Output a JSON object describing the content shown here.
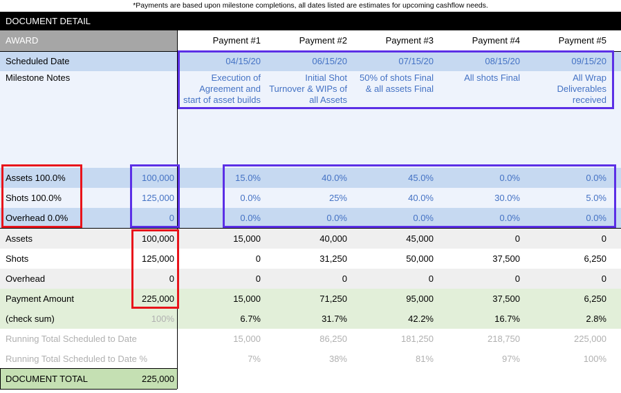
{
  "note": "*Payments are based upon milestone completions, all dates listed are estimates for upcoming cashflow needs.",
  "title": "DOCUMENT DETAIL",
  "award_label": "AWARD",
  "payment_headers": [
    "Payment #1",
    "Payment #2",
    "Payment #3",
    "Payment #4",
    "Payment #5"
  ],
  "scheduled_date": {
    "label": "Scheduled Date",
    "values": [
      "04/15/20",
      "06/15/20",
      "07/15/20",
      "08/15/20",
      "09/15/20"
    ]
  },
  "milestone_notes": {
    "label": "Milestone Notes",
    "values": [
      [
        "Execution of",
        "Agreement and",
        "start of asset builds"
      ],
      [
        "Initial Shot",
        "Turnover & WIPs of",
        "all Assets"
      ],
      [
        "50% of shots Final",
        "& all assets Final"
      ],
      [
        "All shots Final"
      ],
      [
        "All Wrap",
        "Deliverables",
        "received"
      ]
    ]
  },
  "percent_rows": [
    {
      "label": "Assets 100.0%",
      "amount": "100,000",
      "values": [
        "15.0%",
        "40.0%",
        "45.0%",
        "0.0%",
        "0.0%"
      ]
    },
    {
      "label": "Shots 100.0%",
      "amount": "125,000",
      "values": [
        "0.0%",
        "25%",
        "40.0%",
        "30.0%",
        "5.0%"
      ]
    },
    {
      "label": "Overhead 0.0%",
      "amount": "0",
      "values": [
        "0.0%",
        "0.0%",
        "0.0%",
        "0.0%",
        "0.0%"
      ]
    }
  ],
  "amount_rows": [
    {
      "label": "Assets",
      "amount": "100,000",
      "values": [
        "15,000",
        "40,000",
        "45,000",
        "0",
        "0"
      ]
    },
    {
      "label": "Shots",
      "amount": "125,000",
      "values": [
        "0",
        "31,250",
        "50,000",
        "37,500",
        "6,250"
      ]
    },
    {
      "label": "Overhead",
      "amount": "0",
      "values": [
        "0",
        "0",
        "0",
        "0",
        "0"
      ]
    },
    {
      "label": "Payment Amount",
      "amount": "225,000",
      "values": [
        "15,000",
        "71,250",
        "95,000",
        "37,500",
        "6,250"
      ]
    },
    {
      "label": "(check sum)",
      "amount": "100%",
      "values": [
        "6.7%",
        "31.7%",
        "42.2%",
        "16.7%",
        "2.8%"
      ]
    },
    {
      "label": "Running Total Scheduled to Date",
      "amount": "",
      "values": [
        "15,000",
        "86,250",
        "181,250",
        "218,750",
        "225,000"
      ]
    },
    {
      "label": "Running Total Scheduled to Date %",
      "amount": "",
      "values": [
        "7%",
        "38%",
        "81%",
        "97%",
        "100%"
      ]
    }
  ],
  "document_total": {
    "label": "DOCUMENT TOTAL",
    "amount": "225,000"
  },
  "colors": {
    "header_gray": "#a6a6a6",
    "light_blue": "#c6d9f1",
    "lighter_blue": "#eef3fc",
    "light_gray": "#efefef",
    "light_green": "#e2efd9",
    "total_green": "#c5e0b3",
    "blue_text": "#4472c4",
    "red_box": "#e8141b",
    "purple_box": "#5b2fe6"
  }
}
